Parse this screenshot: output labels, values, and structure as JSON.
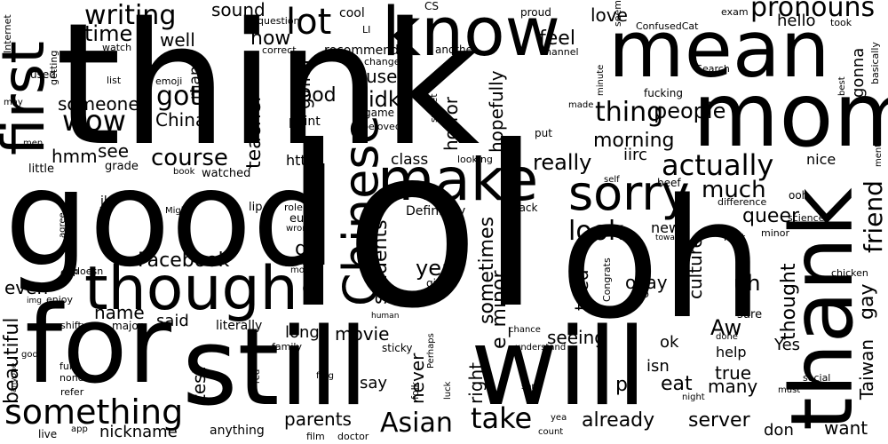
{
  "colors": {
    "background": "#ffffff",
    "text": "#000000"
  },
  "words": {
    "think": "think",
    "lol": "lol",
    "oh": "oh",
    "good": "good",
    "for": "for",
    "still": "still",
    "will": "will",
    "know": "know",
    "mean": "mean",
    "mom": "mom",
    "thank": "thank",
    "though": "though",
    "make": "make",
    "first": "first",
    "sorry": "sorry",
    "chinese": "Chinese",
    "something": "something",
    "lot": "lot",
    "writing": "writing",
    "pronouns": "pronouns",
    "actually": "actually",
    "people": "people",
    "thing": "thing",
    "take": "take",
    "asian": "Asian",
    "morning": "morning",
    "course": "course",
    "look": "look",
    "wow": "wow",
    "much": "much",
    "got": "got",
    "time": "time",
    "facebook": "Facebook",
    "already": "already",
    "server": "server",
    "food": "food",
    "friend": "friend",
    "beautiful": "beautiful",
    "idk": "idk",
    "really": "really",
    "now": "now",
    "year": "year",
    "feel": "feel",
    "queer": "queer",
    "students": "students",
    "sometimes": "sometimes",
    "uh": "uh",
    "e_minor": "e_minor",
    "teacher": "teacher",
    "love": "love",
    "well": "well",
    "hello": "hello",
    "thought": "thought",
    "taiwan": "Taiwan",
    "gay": "gay",
    "sound": "sound",
    "someone": "someone",
    "china": "China",
    "aw": "Aw",
    "true": "true",
    "okay": "okay",
    "culture": "culture",
    "parents": "parents",
    "nickname": "nickname",
    "movie": "movie",
    "name": "name",
    "going": "going",
    "hmm": "hmm",
    "see": "see",
    "even": "even",
    "hopefully": "hopefully",
    "horror": "horror",
    "use": "use",
    "never": "never",
    "want": "want",
    "eat": "eat",
    "many": "many",
    "seeing": "seeing",
    "said": "said",
    "say": "say",
    "right": "right",
    "test": "test",
    "tried": "tried",
    "yes": "Yes",
    "don": "don",
    "isn": "isn",
    "iirc": "iirc",
    "class": "class",
    "long": "long",
    "https": "https",
    "nice": "nice",
    "man": "man",
    "gonna": "gonna",
    "recommend": "recommend",
    "definitely": "Definitely",
    "literally": "literally",
    "new": "new",
    "ok": "ok",
    "help": "help",
    "p": "p",
    "d": "d",
    "g": "g",
    "u": "u",
    "cool": "cool",
    "cs": "CS",
    "proud": "proud",
    "confusedcat": "ConfusedCat",
    "exam": "exam",
    "seem": "seem",
    "question": "question",
    "li": "LI",
    "internet": "Internet",
    "getting": "getting",
    "used": "used",
    "watch": "watch",
    "list": "list",
    "emoji": "emoji",
    "correct": "correct",
    "change": "change",
    "another": "another",
    "channel": "channel",
    "minute": "minute",
    "search": "Search",
    "best": "best",
    "basically": "basically",
    "took": "took",
    "fucking": "fucking",
    "made": "made",
    "mentioned": "mentioned",
    "may": "may",
    "men": "men",
    "little": "little",
    "grade": "grade",
    "point": "point",
    "game": "game",
    "beloved": "beloved",
    "sweet": "sweet",
    "put": "put",
    "looking": "looking",
    "book": "book",
    "watched": "watched",
    "self": "self",
    "beef": "beef",
    "ooh": "ooh",
    "difference": "difference",
    "jk": "jk",
    "might": "Might",
    "lip": "lip",
    "role": "role",
    "eugh": "eugh",
    "wrong": "wrong",
    "black": "Black",
    "science": "science",
    "towards": "towards",
    "next": "next",
    "minor": "minor",
    "agree": "agree",
    "doesn": "doesn",
    "great": "great",
    "move": "move",
    "chicken": "chicken",
    "ccp": "CCP",
    "enjoy": "enjoy",
    "img": "img",
    "girl": "girl",
    "congrats": "Congrats",
    "io": "IO",
    "sure": "sure",
    "human": "human",
    "shifty": "shifty",
    "major": "major",
    "chance": "chance",
    "done": "done",
    "family": "family",
    "sticky": "sticky",
    "understand": "understand",
    "god": "god",
    "perhaps": "Perhaps",
    "fun": "fun",
    "none": "none",
    "red": "red",
    "ferg": "ferg",
    "anyone": "anyone",
    "refer": "refer",
    "folk": "folk",
    "luck": "luck",
    "social": "social",
    "song": "song",
    "night": "night",
    "must": "must",
    "live": "live",
    "app": "app",
    "anything": "anything",
    "film": "film",
    "doctor": "doctor",
    "yea": "yea",
    "count": "count"
  }
}
